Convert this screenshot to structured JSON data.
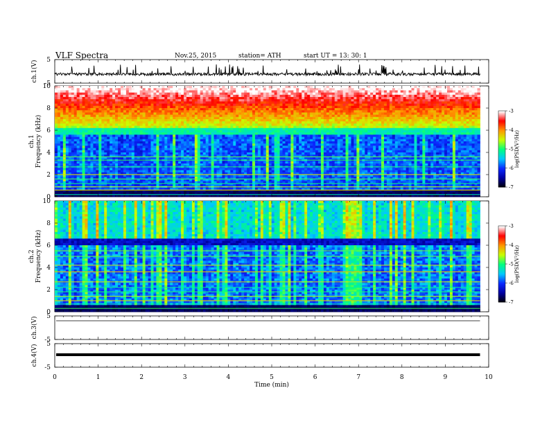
{
  "header": {
    "title": "VLF  Spectra",
    "date": "Nov.25, 2015",
    "station": "station= ATH",
    "start": "start  UT  =   13: 30: 1"
  },
  "chart_data": [
    {
      "type": "line",
      "id": "ch1-waveform",
      "ylabel": "ch.1(V)",
      "ylim": [
        -5,
        5
      ],
      "yticks": [
        "5",
        "-5"
      ],
      "xlim": [
        0,
        10
      ],
      "signal_range_min": [
        0,
        9.8
      ]
    },
    {
      "type": "heatmap",
      "id": "ch1-spectrogram",
      "ylabel_line1": "ch.1",
      "ylabel_line2": "Frequency  (kHz)",
      "ylim": [
        0,
        10
      ],
      "yticks": [
        "10",
        "8",
        "6",
        "4",
        "2",
        "0"
      ],
      "xlim": [
        0,
        10
      ],
      "data_extent_min": 9.8,
      "colorbar": {
        "label": "log(PSD(V²/Hz)",
        "ticks": [
          "-3",
          "-4",
          "-5",
          "-6",
          "-7"
        ],
        "range": [
          -7,
          -3
        ]
      }
    },
    {
      "type": "heatmap",
      "id": "ch2-spectrogram",
      "ylabel_line1": "ch.2",
      "ylabel_line2": "Frequency  (kHz)",
      "ylim": [
        0,
        10
      ],
      "yticks": [
        "10",
        "8",
        "6",
        "4",
        "2",
        "0"
      ],
      "xlim": [
        0,
        10
      ],
      "data_extent_min": 9.8,
      "colorbar": {
        "label": "log(PSD(V²/Hz)",
        "ticks": [
          "-3",
          "-4",
          "-5",
          "-6",
          "-7"
        ],
        "range": [
          -7,
          -3
        ]
      }
    },
    {
      "type": "line",
      "id": "ch3-waveform",
      "ylabel": "ch.3(V)",
      "ylim": [
        -5,
        5
      ],
      "yticks": [
        "5",
        "-5"
      ],
      "xlim": [
        0,
        10
      ]
    },
    {
      "type": "line",
      "id": "ch4-waveform",
      "ylabel": "ch.4(V)",
      "ylim": [
        -5,
        5
      ],
      "yticks": [
        "5",
        "-5"
      ],
      "xlim": [
        0,
        10
      ]
    }
  ],
  "xaxis": {
    "label": "Time  (min)",
    "ticks": [
      "0",
      "1",
      "2",
      "3",
      "4",
      "5",
      "6",
      "7",
      "8",
      "9",
      "10"
    ]
  },
  "colors": {
    "colormap": [
      "#000000",
      "#0000a0",
      "#0a28ff",
      "#00c8ff",
      "#00ff80",
      "#c8ff00",
      "#ff9600",
      "#ff0000",
      "#ffffff"
    ],
    "trace": "#000000"
  }
}
